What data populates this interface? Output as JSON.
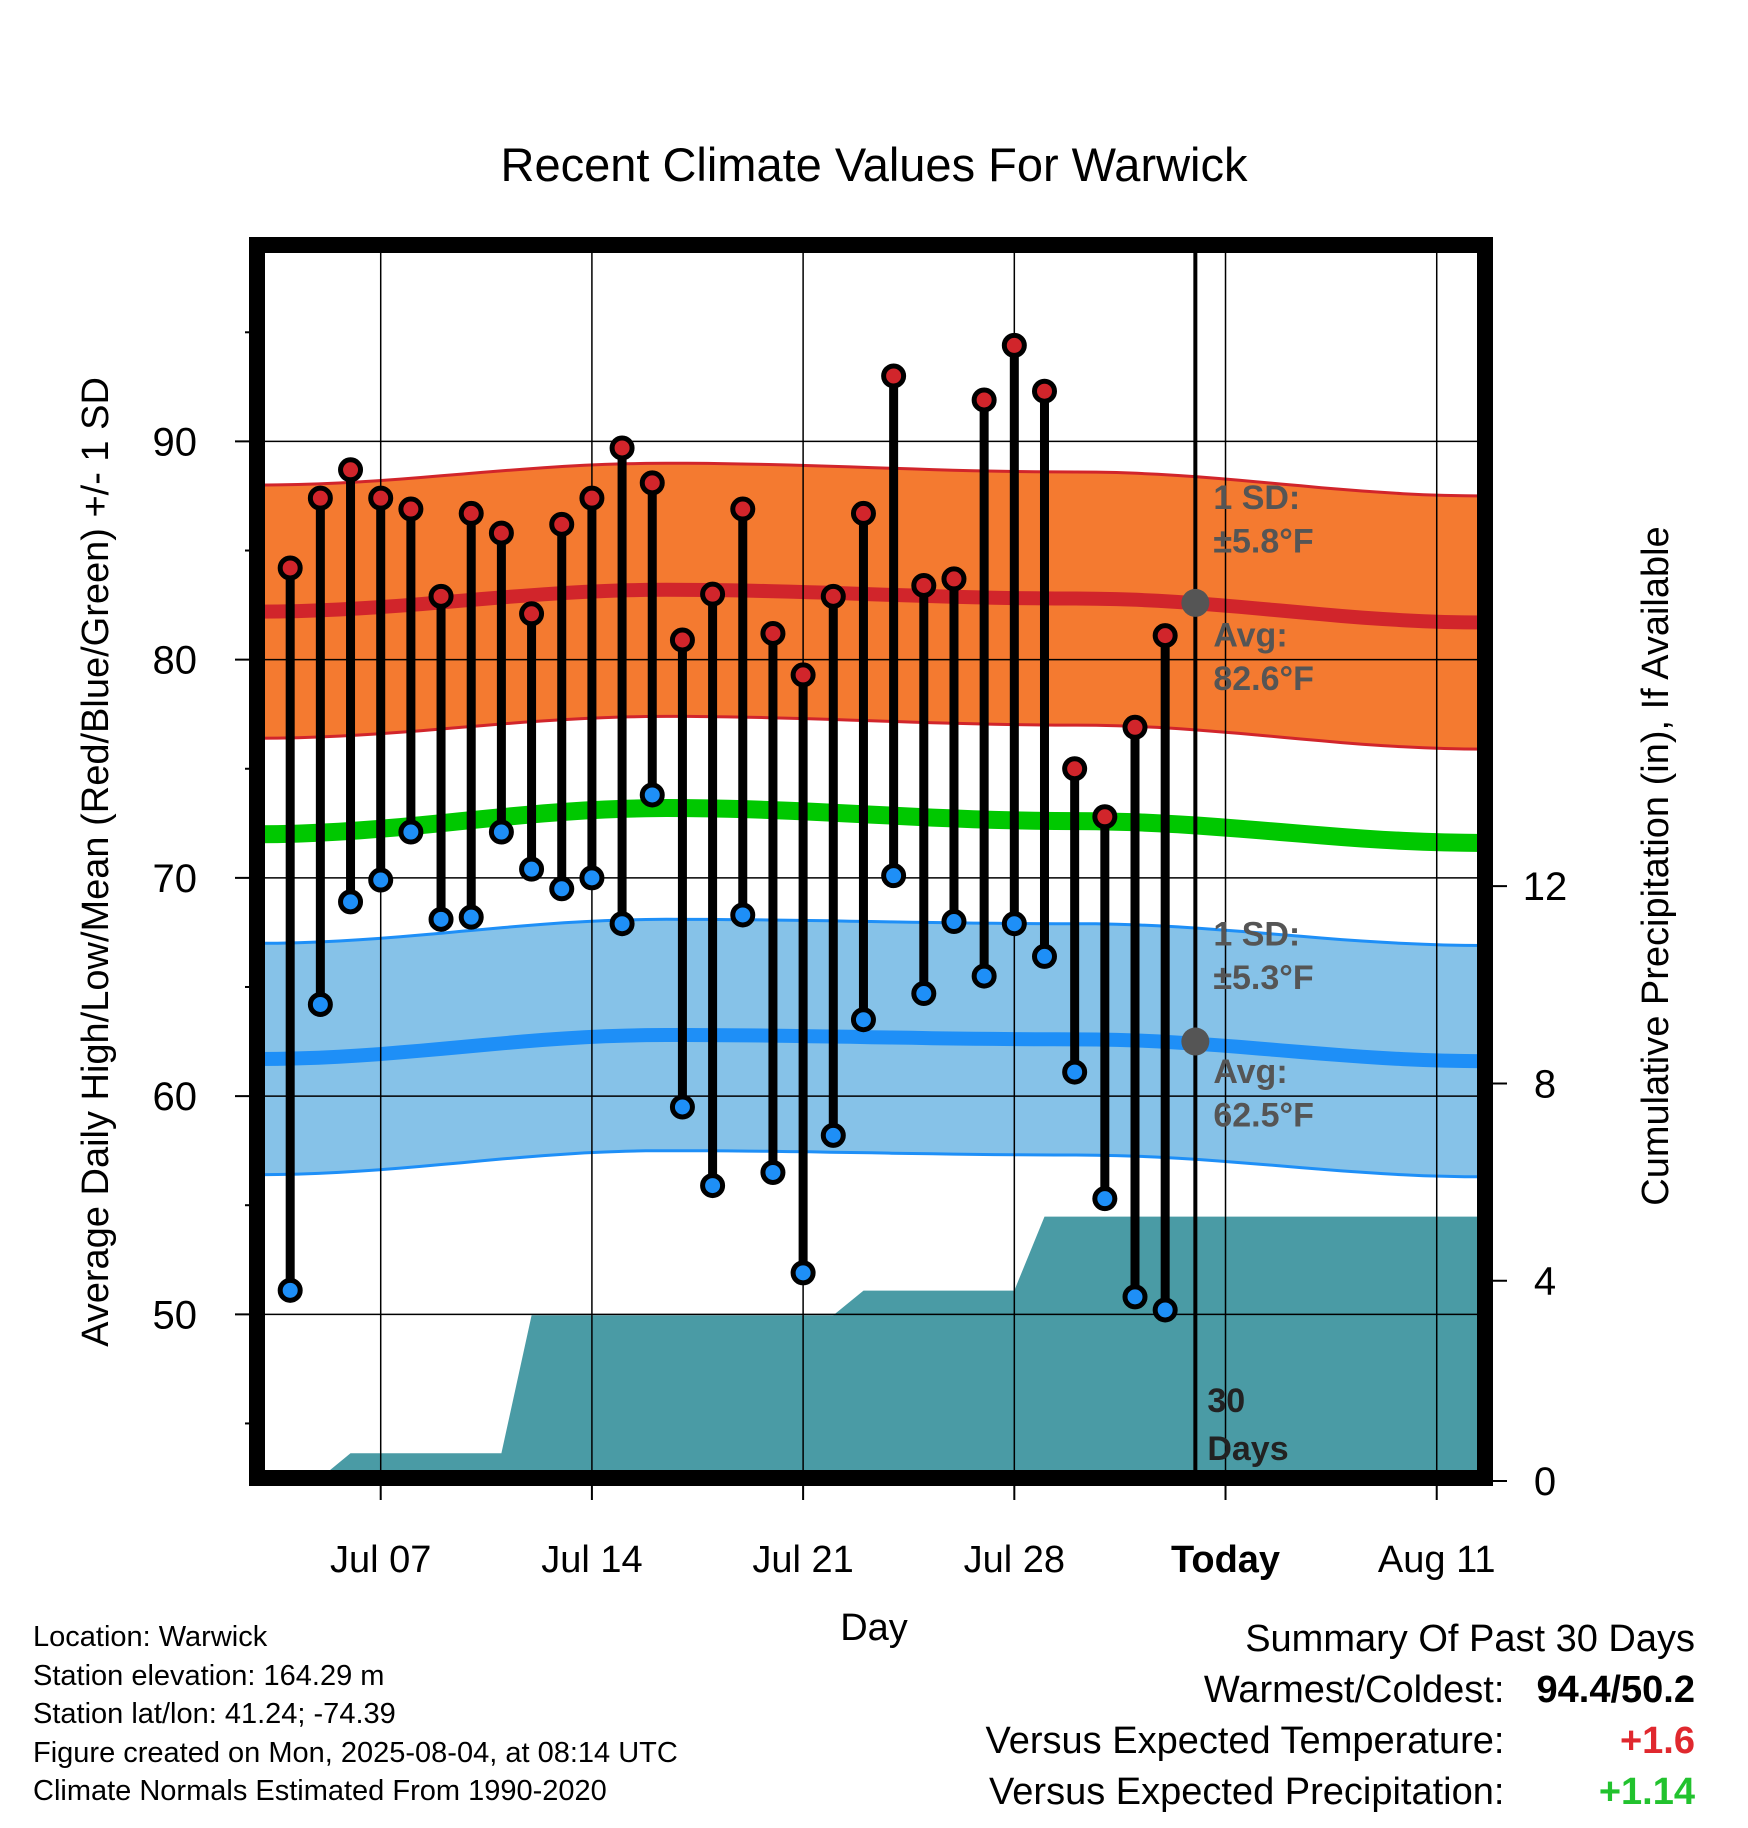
{
  "chart_data": {
    "type": "line",
    "title": "Recent Climate Values For Warwick",
    "xlabel": "Day",
    "ylabel_left": "Average Daily High/Low/Mean (Red/Blue/Green) +/- 1 SD",
    "ylabel_right": "Cumulative Precipitation (in), If Available",
    "x_tick_labels": [
      "Jul 07",
      "Jul 14",
      "Jul 21",
      "Jul 28",
      "Today",
      "Aug 11"
    ],
    "y_left_ticks": [
      "50",
      "60",
      "70",
      "80",
      "90"
    ],
    "y_right_ticks": [
      "0",
      "4",
      "8",
      "12"
    ],
    "y_left_range": [
      42.5,
      99
    ],
    "y_right_range": [
      0,
      25
    ],
    "x_range_days": [
      -31.1,
      9.6
    ],
    "days": [
      -30,
      -29,
      -28,
      -27,
      -26,
      -25,
      -24,
      -23,
      -22,
      -21,
      -20,
      -19,
      -18,
      -17,
      -16,
      -15,
      -14,
      -13,
      -12,
      -11,
      -10,
      -9,
      -8,
      -7,
      -6,
      -5,
      -4,
      -3,
      -2,
      -1
    ],
    "highs": [
      84.2,
      87.4,
      88.7,
      87.4,
      86.9,
      82.9,
      86.7,
      85.8,
      82.1,
      86.2,
      87.4,
      89.7,
      88.1,
      80.9,
      83.0,
      86.9,
      81.2,
      79.3,
      82.9,
      86.7,
      93.0,
      83.4,
      83.7,
      91.9,
      94.4,
      92.3,
      75.0,
      72.8,
      76.9,
      81.1
    ],
    "lows": [
      51.1,
      64.2,
      68.9,
      69.9,
      72.1,
      68.1,
      68.2,
      72.1,
      70.4,
      69.5,
      70.0,
      67.9,
      73.8,
      59.5,
      55.9,
      68.3,
      56.5,
      51.9,
      58.2,
      63.5,
      70.1,
      64.7,
      68.0,
      65.5,
      67.9,
      66.4,
      61.1,
      55.3,
      50.8,
      50.2
    ],
    "normals": {
      "high_avg_curve": [
        82.2,
        83.2,
        82.8,
        81.7
      ],
      "high_sd": 5.8,
      "low_avg_curve": [
        61.7,
        62.8,
        62.6,
        61.6
      ],
      "low_sd": 5.3,
      "mean_curve": [
        72.0,
        73.2,
        72.6,
        71.6
      ]
    },
    "precip_cumulative": [
      0,
      0,
      0,
      0.5,
      0.5,
      0.5,
      0.5,
      0.5,
      0.5,
      3.3,
      3.3,
      3.3,
      3.3,
      3.3,
      3.3,
      3.3,
      3.3,
      3.3,
      3.3,
      3.3,
      3.8,
      3.8,
      3.8,
      3.8,
      3.8,
      3.8,
      5.3,
      5.3,
      5.3,
      5.3,
      5.3,
      5.3,
      5.3
    ],
    "annotations": {
      "high_sd_label": "1 SD:",
      "high_sd_value": "±5.8°F",
      "high_avg_label": "Avg:",
      "high_avg_value": "82.6°F",
      "low_sd_label": "1 SD:",
      "low_sd_value": "±5.3°F",
      "low_avg_label": "Avg:",
      "low_avg_value": "62.5°F",
      "period_label_1": "30",
      "period_label_2": "Days"
    },
    "grid": true,
    "colors": {
      "high_band": "#f47a30",
      "high_line": "#d1252b",
      "low_band": "#86c2e8",
      "low_line": "#1e8ff7",
      "mean_line": "#00c800",
      "precip": "#4a9ba5",
      "high_dot": "#d1252b",
      "low_dot": "#1e8ff7",
      "marker": "#555555"
    }
  },
  "info": {
    "location": "Location: Warwick",
    "elevation": "Station elevation: 164.29 m",
    "latlon": "Station lat/lon: 41.24; -74.39",
    "created": "Figure created on Mon, 2025-08-04, at 08:14 UTC",
    "normals": "Climate Normals Estimated From 1990-2020"
  },
  "summary": {
    "title": "Summary Of Past 30 Days",
    "warmest_label": "Warmest/Coldest:",
    "warmest_value": "94.4/50.2",
    "temp_label": "Versus Expected Temperature:",
    "temp_value": "+1.6",
    "precip_label": "Versus Expected Precipitation:",
    "precip_value": "+1.14"
  }
}
